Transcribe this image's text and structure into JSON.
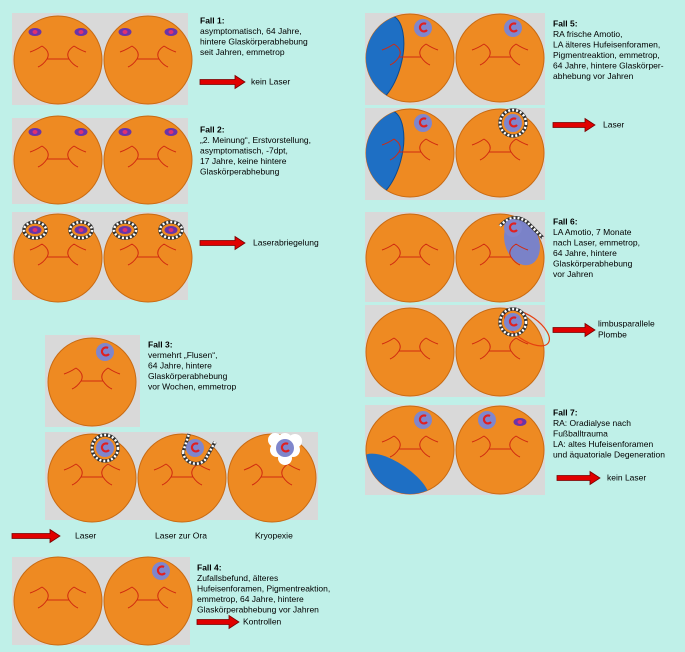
{
  "cases": [
    {
      "title": "Fall 1:",
      "lines": [
        "asymptomatisch, 64 Jahre,",
        "hintere Glaskörperabhebung",
        "seit Jahren, emmetrop"
      ],
      "actions": [
        "kein Laser"
      ]
    },
    {
      "title": "Fall 2:",
      "lines": [
        "„2. Meinung“, Erstvorstellung,",
        "asymptomatisch, -7dpt,",
        "17 Jahre, keine hintere",
        "Glaskörperabhebung"
      ],
      "actions": [
        "Laserabriegelung"
      ]
    },
    {
      "title": "Fall 3:",
      "lines": [
        "vermehrt „Flusen“,",
        "64 Jahre, hintere",
        "Glaskörperabhebung",
        "vor Wochen, emmetrop"
      ],
      "actions": [
        "Laser",
        "Laser zur Ora",
        "Kryopexie"
      ]
    },
    {
      "title": "Fall 4:",
      "lines": [
        "Zufallsbefund, älteres",
        "Hufeisenforamen, Pigmentreaktion,",
        "emmetrop, 64 Jahre, hintere",
        "Glaskörperabhebung vor Jahren"
      ],
      "actions": [
        "Kontrollen"
      ]
    },
    {
      "title": "Fall 5:",
      "lines": [
        "RA frische Amotio,",
        "LA älteres Hufeisenforamen,",
        "Pigmentreaktion, emmetrop,",
        "64 Jahre, hintere Glaskörper-",
        "abhebung vor Jahren"
      ],
      "actions": [
        "Laser"
      ]
    },
    {
      "title": "Fall 6:",
      "lines": [
        "LA Amotio, 7 Monate",
        "nach Laser, emmetrop,",
        "64 Jahre, hintere",
        "Glaskörperabhebung",
        "vor Jahren"
      ],
      "actions": [
        "limbusparallele",
        "Plombe"
      ]
    },
    {
      "title": "Fall 7:",
      "lines": [
        "RA: Oradialyse nach",
        "Fußballtrauma",
        "LA: altes Hufeisenforamen",
        "und äquatoriale Degeneration"
      ],
      "actions": [
        "kein Laser"
      ]
    }
  ]
}
